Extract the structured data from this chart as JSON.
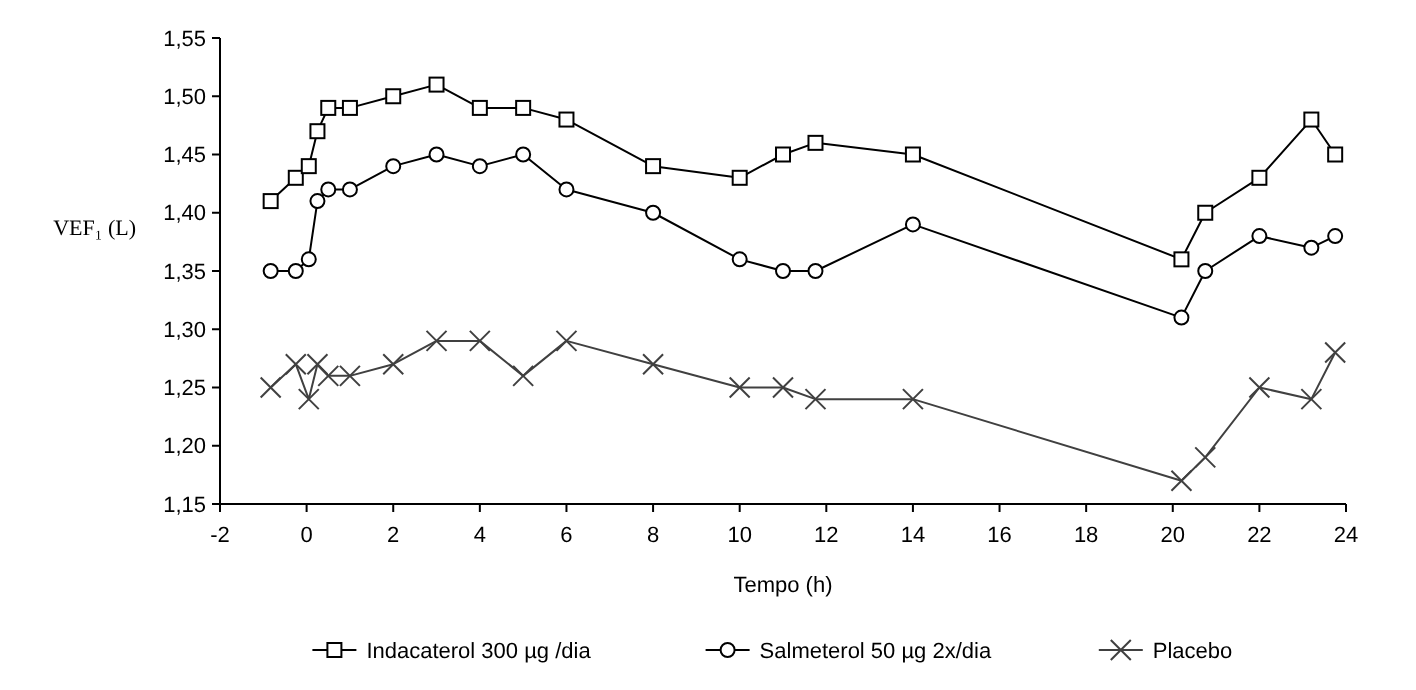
{
  "chart_data": {
    "type": "line",
    "xlabel": "Tempo (h)",
    "ylabel": "VEF₁ (L)",
    "x": [
      -0.83,
      -0.25,
      0.05,
      0.25,
      0.5,
      1,
      2,
      3,
      4,
      5,
      6,
      8,
      10,
      11,
      11.75,
      14,
      20.2,
      20.75,
      22,
      23.2,
      23.75
    ],
    "series": [
      {
        "name": "Indacaterol 300 µg /dia",
        "color": "#000000",
        "marker": "square",
        "values": [
          1.41,
          1.43,
          1.44,
          1.47,
          1.49,
          1.49,
          1.5,
          1.51,
          1.49,
          1.49,
          1.48,
          1.44,
          1.43,
          1.45,
          1.46,
          1.45,
          1.36,
          1.4,
          1.43,
          1.48,
          1.45
        ]
      },
      {
        "name": "Salmeterol 50 µg 2x/dia",
        "color": "#000000",
        "marker": "circle",
        "values": [
          1.35,
          1.35,
          1.36,
          1.41,
          1.42,
          1.42,
          1.44,
          1.45,
          1.44,
          1.45,
          1.42,
          1.4,
          1.36,
          1.35,
          1.35,
          1.39,
          1.31,
          1.35,
          1.38,
          1.37,
          1.38
        ]
      },
      {
        "name": "Placebo",
        "color": "#404040",
        "marker": "cross",
        "values": [
          1.25,
          1.27,
          1.24,
          1.27,
          1.26,
          1.26,
          1.27,
          1.29,
          1.29,
          1.26,
          1.29,
          1.27,
          1.25,
          1.25,
          1.24,
          1.24,
          1.17,
          1.19,
          1.25,
          1.24,
          1.28
        ]
      }
    ],
    "xlim": [
      -2,
      24
    ],
    "xticks": [
      -2,
      0,
      2,
      4,
      6,
      8,
      10,
      12,
      14,
      16,
      18,
      20,
      22,
      24
    ],
    "ylim": [
      1.15,
      1.55
    ],
    "yticks": [
      {
        "value": 1.15,
        "label": "1,15"
      },
      {
        "value": 1.2,
        "label": "1,20"
      },
      {
        "value": 1.25,
        "label": "1,25"
      },
      {
        "value": 1.3,
        "label": "1,30"
      },
      {
        "value": 1.35,
        "label": "1,35"
      },
      {
        "value": 1.4,
        "label": "1,40"
      },
      {
        "value": 1.45,
        "label": "1,45"
      },
      {
        "value": 1.5,
        "label": "1,50"
      },
      {
        "value": 1.55,
        "label": "1,55"
      }
    ],
    "legend": "bottom",
    "line_style": "solid"
  }
}
